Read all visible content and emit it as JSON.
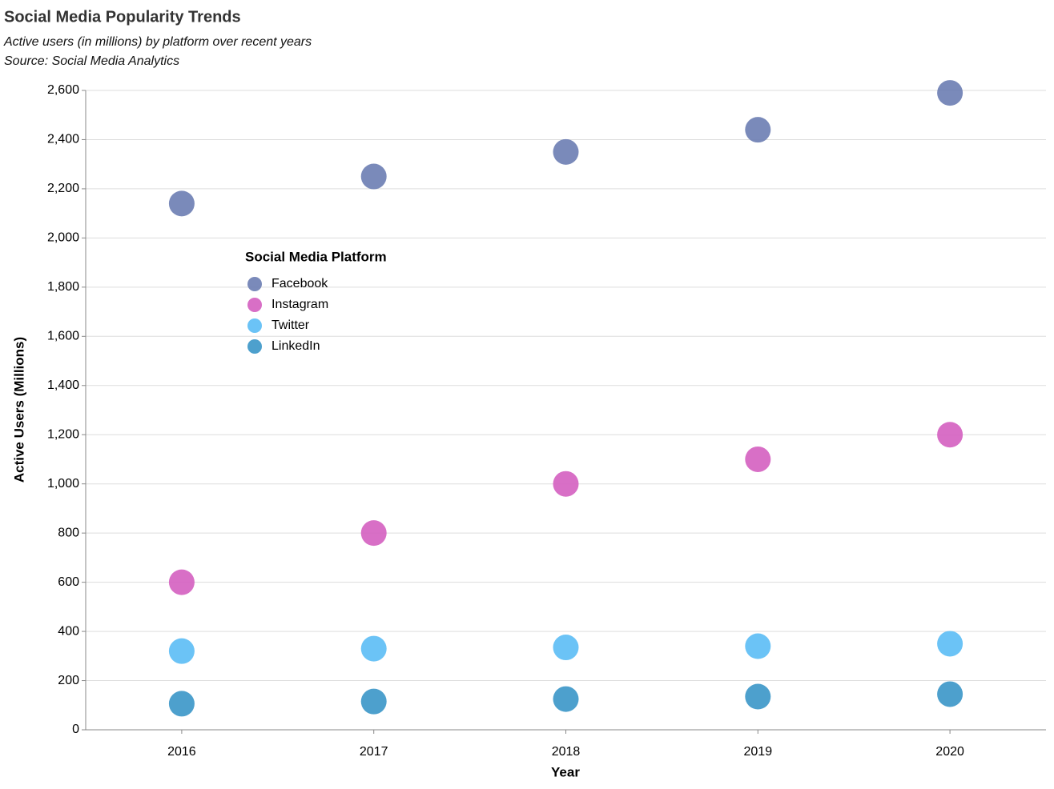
{
  "chart_data": {
    "type": "scatter",
    "title": "Social Media Popularity Trends",
    "subtitle": [
      "Active users (in millions) by platform over recent years",
      "Source: Social Media Analytics"
    ],
    "x_label": "Year",
    "y_label": "Active Users (Millions)",
    "categories": [
      "2016",
      "2017",
      "2018",
      "2019",
      "2020"
    ],
    "series": [
      {
        "name": "Facebook",
        "color": "#6b7db3",
        "values": [
          2140,
          2250,
          2350,
          2440,
          2590
        ]
      },
      {
        "name": "Instagram",
        "color": "#d45fc0",
        "values": [
          600,
          800,
          1000,
          1100,
          1200
        ]
      },
      {
        "name": "Twitter",
        "color": "#5bbdf5",
        "values": [
          320,
          330,
          335,
          340,
          350
        ]
      },
      {
        "name": "LinkedIn",
        "color": "#3a96c8",
        "values": [
          106,
          115,
          125,
          135,
          145
        ]
      }
    ],
    "legend_title": "Social Media Platform",
    "ylim": [
      0,
      2600
    ],
    "yticks": [
      0,
      200,
      400,
      600,
      800,
      {
        "value": 1000,
        "label": "1,000"
      },
      {
        "value": 1200,
        "label": "1,200"
      },
      {
        "value": 1400,
        "label": "1,400"
      },
      {
        "value": 1600,
        "label": "1,600"
      },
      {
        "value": 1800,
        "label": "1,800"
      },
      {
        "value": 2000,
        "label": "2,000"
      },
      {
        "value": 2200,
        "label": "2,200"
      },
      {
        "value": 2400,
        "label": "2,400"
      },
      {
        "value": 2600,
        "label": "2,600"
      }
    ],
    "grid": true
  }
}
